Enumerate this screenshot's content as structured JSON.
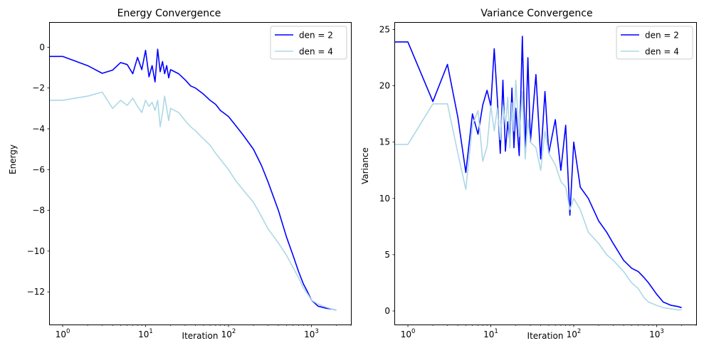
{
  "chart_data": [
    {
      "type": "line",
      "title": "Energy Convergence",
      "xlabel": "Iteration",
      "ylabel": "Energy",
      "xscale": "log",
      "xlim": [
        0.7,
        3000
      ],
      "ylim": [
        -13.6,
        1.2
      ],
      "x_ticks": [
        {
          "value": 1,
          "base": "10",
          "exp": "0"
        },
        {
          "value": 10,
          "base": "10",
          "exp": "1"
        },
        {
          "value": 100,
          "base": "10",
          "exp": "2"
        },
        {
          "value": 1000,
          "base": "10",
          "exp": "3"
        }
      ],
      "y_ticks": [
        {
          "value": 0,
          "label": "0"
        },
        {
          "value": -2,
          "label": "−2"
        },
        {
          "value": -4,
          "label": "−4"
        },
        {
          "value": -6,
          "label": "−6"
        },
        {
          "value": -8,
          "label": "−8"
        },
        {
          "value": -10,
          "label": "−10"
        },
        {
          "value": -12,
          "label": "−12"
        }
      ],
      "grid": false,
      "legend_position": "upper right",
      "series": [
        {
          "name": "den = 2",
          "color": "#0000ff",
          "x": [
            0.5,
            1,
            2,
            3,
            4,
            5,
            6,
            7,
            8,
            9,
            10,
            11,
            12,
            13,
            14,
            15,
            16,
            17,
            18,
            19,
            20,
            25,
            30,
            35,
            40,
            50,
            60,
            70,
            80,
            100,
            120,
            150,
            200,
            250,
            300,
            400,
            500,
            600,
            700,
            800,
            900,
            1000,
            1200,
            1500,
            1800,
            2000
          ],
          "y": [
            -0.45,
            -0.45,
            -0.9,
            -1.28,
            -1.12,
            -0.75,
            -0.85,
            -1.3,
            -0.5,
            -1.1,
            -0.15,
            -1.45,
            -0.9,
            -1.7,
            -0.1,
            -1.2,
            -0.7,
            -1.3,
            -0.9,
            -1.5,
            -1.1,
            -1.3,
            -1.6,
            -1.9,
            -2.0,
            -2.3,
            -2.6,
            -2.8,
            -3.1,
            -3.4,
            -3.8,
            -4.3,
            -5.0,
            -5.8,
            -6.6,
            -8.0,
            -9.3,
            -10.2,
            -11.0,
            -11.6,
            -12.0,
            -12.4,
            -12.7,
            -12.8,
            -12.85,
            -12.9
          ]
        },
        {
          "name": "den = 4",
          "color": "#add8e6",
          "x": [
            0.5,
            1,
            2,
            3,
            4,
            5,
            6,
            7,
            8,
            9,
            10,
            11,
            12,
            13,
            14,
            15,
            16,
            17,
            18,
            19,
            20,
            25,
            30,
            35,
            40,
            50,
            60,
            70,
            80,
            100,
            120,
            150,
            200,
            250,
            300,
            400,
            500,
            600,
            700,
            800,
            900,
            1000,
            1200,
            1500,
            1800,
            2000
          ],
          "y": [
            -2.6,
            -2.6,
            -2.4,
            -2.2,
            -3.0,
            -2.6,
            -2.85,
            -2.5,
            -2.9,
            -3.2,
            -2.6,
            -2.9,
            -2.7,
            -3.1,
            -2.6,
            -3.9,
            -3.2,
            -2.4,
            -3.0,
            -3.6,
            -3.0,
            -3.2,
            -3.6,
            -3.9,
            -4.1,
            -4.5,
            -4.8,
            -5.2,
            -5.5,
            -6.0,
            -6.5,
            -7.0,
            -7.6,
            -8.3,
            -8.9,
            -9.6,
            -10.2,
            -10.8,
            -11.3,
            -11.8,
            -12.1,
            -12.4,
            -12.6,
            -12.75,
            -12.85,
            -12.9
          ]
        }
      ]
    },
    {
      "type": "line",
      "title": "Variance Convergence",
      "xlabel": "Iteration",
      "ylabel": "Variance",
      "xscale": "log",
      "xlim": [
        0.7,
        3000
      ],
      "ylim": [
        -1.2,
        25.6
      ],
      "x_ticks": [
        {
          "value": 1,
          "base": "10",
          "exp": "0"
        },
        {
          "value": 10,
          "base": "10",
          "exp": "1"
        },
        {
          "value": 100,
          "base": "10",
          "exp": "2"
        },
        {
          "value": 1000,
          "base": "10",
          "exp": "3"
        }
      ],
      "y_ticks": [
        {
          "value": 0,
          "label": "0"
        },
        {
          "value": 5,
          "label": "5"
        },
        {
          "value": 10,
          "label": "10"
        },
        {
          "value": 15,
          "label": "15"
        },
        {
          "value": 20,
          "label": "20"
        },
        {
          "value": 25,
          "label": "25"
        }
      ],
      "grid": false,
      "legend_position": "upper right",
      "series": [
        {
          "name": "den = 2",
          "color": "#0000ff",
          "x": [
            0.5,
            1,
            2,
            3,
            4,
            5,
            6,
            7,
            8,
            9,
            10,
            11,
            12,
            13,
            14,
            15,
            16,
            17,
            18,
            19,
            20,
            22,
            24,
            26,
            28,
            30,
            35,
            40,
            45,
            50,
            60,
            70,
            80,
            90,
            100,
            120,
            150,
            200,
            250,
            300,
            400,
            500,
            600,
            700,
            800,
            1000,
            1200,
            1500,
            1800,
            2000
          ],
          "y": [
            23.9,
            23.9,
            18.6,
            21.9,
            17.2,
            12.3,
            17.5,
            15.7,
            18.3,
            19.6,
            18.2,
            23.3,
            18.8,
            14.0,
            20.5,
            14.2,
            16.8,
            15.0,
            19.8,
            14.5,
            18.0,
            13.8,
            24.4,
            14.0,
            22.5,
            15.0,
            21.0,
            13.5,
            19.5,
            14.0,
            17.0,
            12.5,
            16.5,
            8.5,
            15.0,
            11.0,
            10.0,
            8.0,
            7.0,
            6.0,
            4.5,
            3.8,
            3.5,
            3.0,
            2.5,
            1.5,
            0.8,
            0.5,
            0.4,
            0.3
          ]
        },
        {
          "name": "den = 4",
          "color": "#add8e6",
          "x": [
            0.5,
            1,
            2,
            3,
            4,
            5,
            6,
            7,
            8,
            9,
            10,
            11,
            12,
            13,
            14,
            15,
            16,
            17,
            18,
            19,
            20,
            22,
            24,
            26,
            28,
            30,
            35,
            40,
            45,
            50,
            60,
            70,
            80,
            90,
            100,
            120,
            150,
            200,
            250,
            300,
            400,
            500,
            600,
            700,
            800,
            1000,
            1200,
            1500,
            1800,
            2000
          ],
          "y": [
            14.8,
            14.8,
            18.4,
            18.4,
            14.0,
            10.8,
            16.5,
            17.8,
            13.3,
            14.6,
            18.2,
            16.0,
            18.0,
            15.2,
            18.3,
            16.5,
            19.0,
            14.5,
            18.5,
            16.0,
            20.5,
            15.5,
            19.5,
            13.5,
            17.0,
            15.0,
            14.5,
            12.5,
            16.0,
            14.0,
            13.0,
            11.5,
            11.0,
            9.0,
            10.0,
            9.0,
            7.0,
            6.0,
            5.0,
            4.5,
            3.5,
            2.5,
            2.0,
            1.2,
            0.8,
            0.5,
            0.3,
            0.2,
            0.1,
            0.1
          ]
        }
      ]
    }
  ]
}
